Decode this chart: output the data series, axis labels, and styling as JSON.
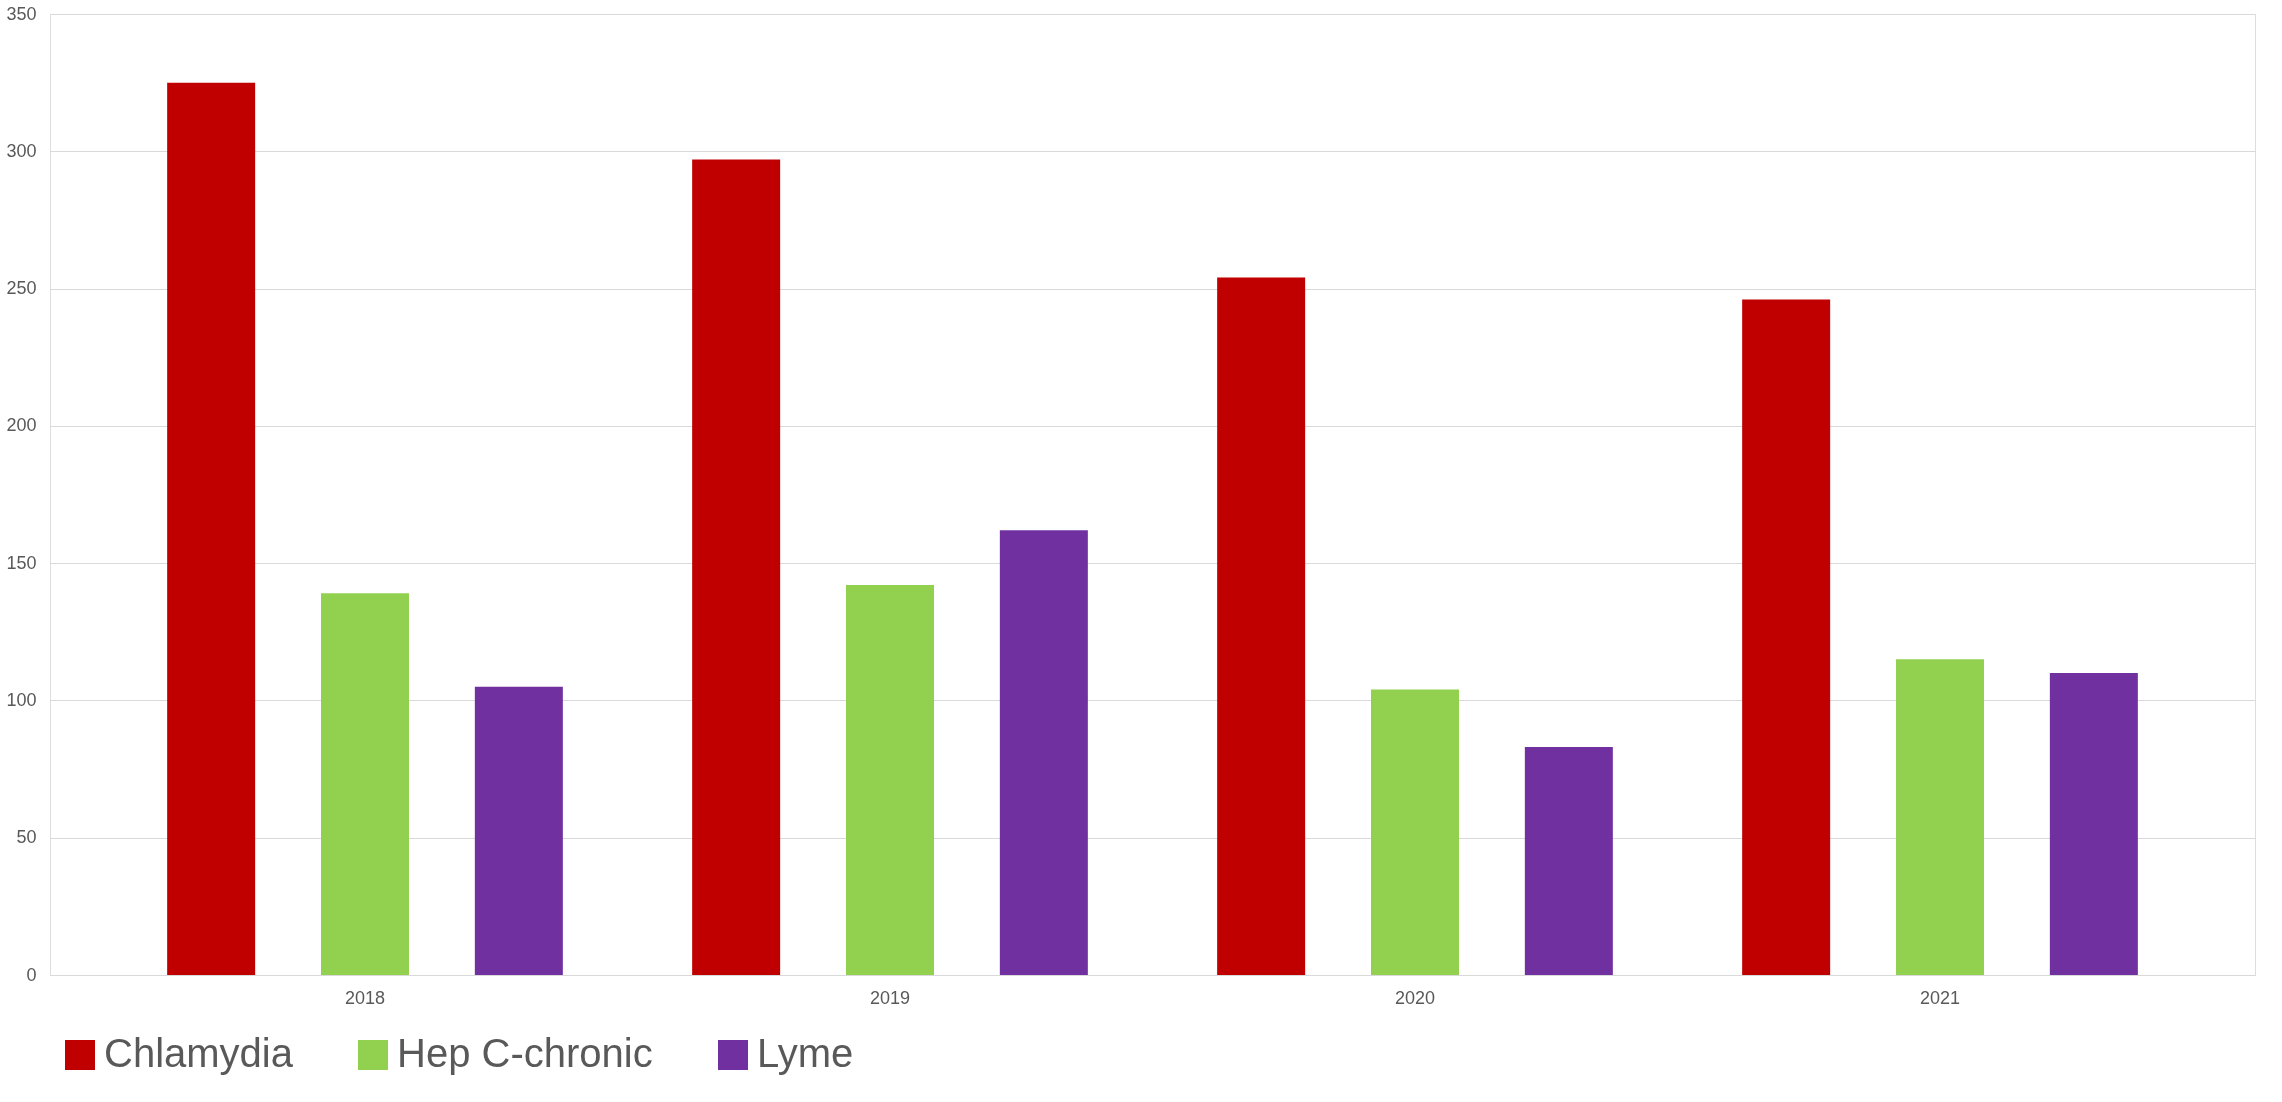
{
  "chart_data": {
    "type": "bar",
    "categories": [
      "2018",
      "2019",
      "2020",
      "2021"
    ],
    "series": [
      {
        "name": "Chlamydia",
        "color": "#c00000",
        "values": [
          325,
          297,
          254,
          246
        ]
      },
      {
        "name": "Hep C-chronic",
        "color": "#92d050",
        "values": [
          139,
          142,
          104,
          115
        ]
      },
      {
        "name": "Lyme",
        "color": "#7030a0",
        "values": [
          105,
          162,
          83,
          110
        ]
      }
    ],
    "ylim": [
      0,
      350
    ],
    "yticks": [
      0,
      50,
      100,
      150,
      200,
      250,
      300,
      350
    ],
    "grid": "y",
    "legend": "bottom"
  }
}
